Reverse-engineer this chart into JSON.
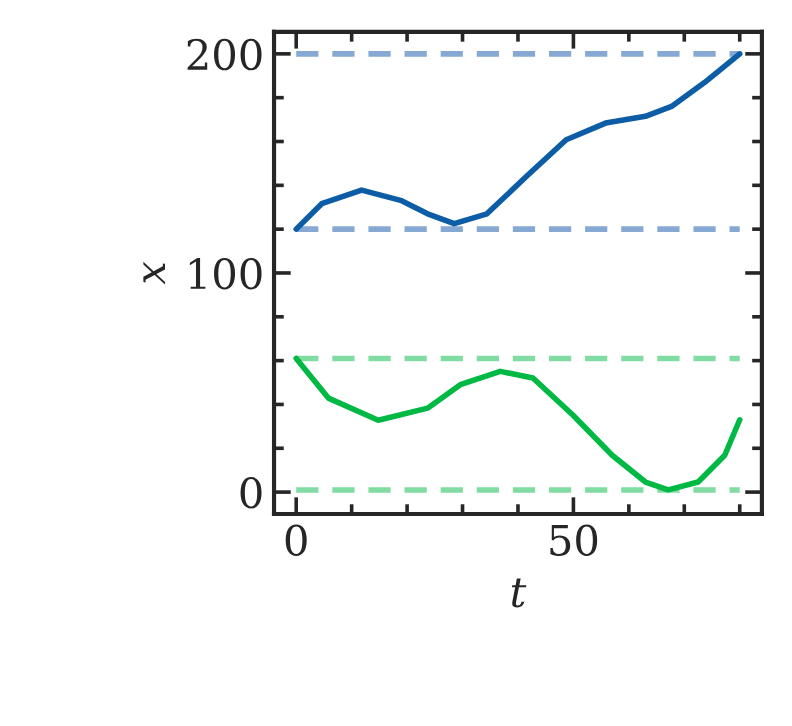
{
  "chart_data": {
    "type": "line",
    "xlabel": "t",
    "ylabel": "x",
    "series": [
      {
        "color": "#0c5da5",
        "x": [
          0,
          4.6,
          11.8,
          19,
          23.7,
          28.5,
          34.4,
          41.5,
          48.7,
          55.8,
          63,
          67.7,
          73.7,
          80
        ],
        "values": [
          120,
          131.6,
          137.8,
          133,
          127,
          122.5,
          127,
          144,
          160.8,
          168.4,
          171.5,
          176,
          187,
          200
        ]
      },
      {
        "color": "#00b945",
        "x": [
          0,
          5.8,
          14.8,
          23.7,
          29.6,
          36.8,
          42.7,
          49.9,
          57,
          63,
          67.1,
          72.5,
          77.3,
          80
        ],
        "values": [
          61,
          42.9,
          32.8,
          38.3,
          49,
          55.1,
          52.1,
          35.2,
          16.8,
          4.6,
          1,
          4.6,
          16.8,
          33
        ]
      }
    ],
    "ref_lines": [
      {
        "axis": "y",
        "value": 200,
        "color": "#85a9d2",
        "line_style": "dashed"
      },
      {
        "axis": "y",
        "value": 120,
        "color": "#85a9d2",
        "line_style": "dashed"
      },
      {
        "axis": "y",
        "value": 61,
        "color": "#80dca2",
        "line_style": "dashed"
      },
      {
        "axis": "y",
        "value": 1,
        "color": "#80dca2",
        "line_style": "dashed"
      }
    ],
    "xlim": [
      -4,
      84
    ],
    "xticks": [
      0,
      50
    ],
    "ylim": [
      -10,
      210
    ],
    "yticks": [
      0,
      100,
      200
    ],
    "grid": false,
    "legend": false
  }
}
